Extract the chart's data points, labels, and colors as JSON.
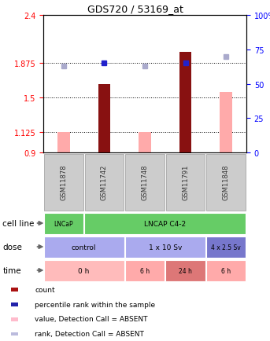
{
  "title": "GDS720 / 53169_at",
  "samples": [
    "GSM11878",
    "GSM11742",
    "GSM11748",
    "GSM11791",
    "GSM11848"
  ],
  "ylim": [
    0.9,
    2.4
  ],
  "yticks_left": [
    0.9,
    1.125,
    1.5,
    1.875,
    2.4
  ],
  "ytick_labels_left": [
    "0.9",
    "1.125",
    "1.5",
    "1.875",
    "2.4"
  ],
  "yticks_right_pct": [
    0,
    25,
    50,
    75,
    100
  ],
  "ytick_labels_right": [
    "0",
    "25",
    "50",
    "75",
    "100%"
  ],
  "hlines": [
    1.125,
    1.5,
    1.875
  ],
  "count_values": [
    null,
    1.65,
    null,
    2.0,
    null
  ],
  "percentile_values": [
    null,
    1.875,
    null,
    1.875,
    null
  ],
  "value_absent": [
    1.125,
    null,
    1.12,
    null,
    1.56
  ],
  "rank_absent_pct": [
    63.0,
    null,
    63.0,
    null,
    70.0
  ],
  "cell_line_groups": [
    {
      "label": "LNCaP",
      "start": 0,
      "end": 1,
      "color": "#66cc66"
    },
    {
      "label": "LNCAP C4-2",
      "start": 1,
      "end": 5,
      "color": "#66cc66"
    }
  ],
  "dose_groups": [
    {
      "label": "control",
      "start": 0,
      "end": 2,
      "color": "#aaaaee"
    },
    {
      "label": "1 x 10 Sv",
      "start": 2,
      "end": 4,
      "color": "#aaaaee"
    },
    {
      "label": "4 x 2.5 Sv",
      "start": 4,
      "end": 5,
      "color": "#7777cc"
    }
  ],
  "time_groups": [
    {
      "label": "0 h",
      "start": 0,
      "end": 2,
      "color": "#ffbbbb"
    },
    {
      "label": "6 h",
      "start": 2,
      "end": 3,
      "color": "#ffaaaa"
    },
    {
      "label": "24 h",
      "start": 3,
      "end": 4,
      "color": "#dd7777"
    },
    {
      "label": "6 h",
      "start": 4,
      "end": 5,
      "color": "#ffaaaa"
    }
  ],
  "legend_items": [
    {
      "color": "#aa1111",
      "label": "count"
    },
    {
      "color": "#2222aa",
      "label": "percentile rank within the sample"
    },
    {
      "color": "#ffbbcc",
      "label": "value, Detection Call = ABSENT"
    },
    {
      "color": "#bbbbdd",
      "label": "rank, Detection Call = ABSENT"
    }
  ],
  "bar_color_count": "#881111",
  "bar_color_absent": "#ffaaaa",
  "dot_color_percentile": "#2222cc",
  "dot_color_rank_absent": "#aaaacc",
  "sample_box_color": "#cccccc",
  "sample_text_color": "#333333",
  "fig_width": 3.43,
  "fig_height": 4.35,
  "dpi": 100
}
